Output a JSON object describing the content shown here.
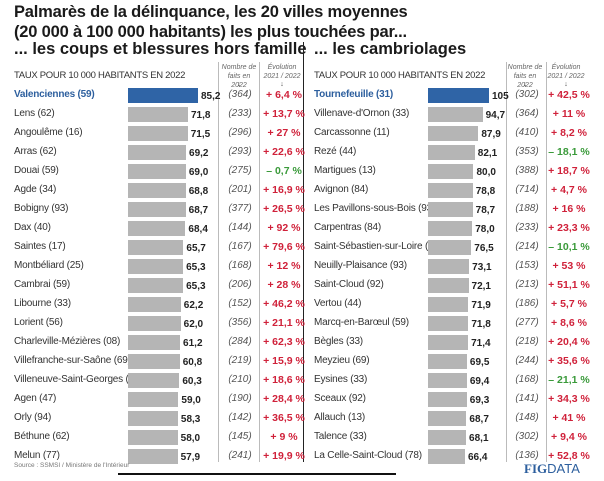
{
  "title_lines": [
    "Palmarès de la délinquance, les 20 villes moyennes",
    "(20 000 à 100 000 habitants) les plus touchées par..."
  ],
  "source": "Source : SSMSI / Ministère de l'Intérieur",
  "logo": {
    "bold": "FIG",
    "light": "DATA"
  },
  "colors": {
    "highlight": "#2f64a6",
    "bar": "#b5b5b5",
    "increase": "#d0213a",
    "decrease": "#3a9a3a"
  },
  "chart_data": [
    {
      "type": "bar",
      "title": "... les coups et blessures hors famille",
      "unit_label": "TAUX POUR 10 000 HABITANTS EN 2022",
      "count_header": "Nombre de faits en 2022",
      "evolution_header": "Évolution 2021 / 2022",
      "categories": [
        "Valenciennes (59)",
        "Lens (62)",
        "Angoulême (16)",
        "Arras (62)",
        "Douai (59)",
        "Agde (34)",
        "Bobigny (93)",
        "Dax (40)",
        "Saintes (17)",
        "Montbéliard (25)",
        "Cambrai (59)",
        "Libourne (33)",
        "Lorient (56)",
        "Charleville-Mézières (08)",
        "Villefranche-sur-Saône (69)",
        "Villeneuve-Saint-Georges (94)",
        "Agen (47)",
        "Orly (94)",
        "Béthune (62)",
        "Melun (77)"
      ],
      "values": [
        85.2,
        71.8,
        71.5,
        69.2,
        69.0,
        68.8,
        68.7,
        68.4,
        65.7,
        65.3,
        65.3,
        62.2,
        62.0,
        61.2,
        60.8,
        60.3,
        59.0,
        58.3,
        58.0,
        57.9
      ],
      "value_labels": [
        "85,2",
        "71,8",
        "71,5",
        "69,2",
        "69,0",
        "68,8",
        "68,7",
        "68,4",
        "65,7",
        "65,3",
        "65,3",
        "62,2",
        "62,0",
        "61,2",
        "60,8",
        "60,3",
        "59,0",
        "58,3",
        "58,0",
        "57,9"
      ],
      "counts": [
        "(364)",
        "(233)",
        "(296)",
        "(293)",
        "(275)",
        "(201)",
        "(377)",
        "(144)",
        "(167)",
        "(168)",
        "(206)",
        "(152)",
        "(356)",
        "(284)",
        "(219)",
        "(210)",
        "(190)",
        "(142)",
        "(145)",
        "(241)"
      ],
      "evolution": [
        "+ 6,4 %",
        "+ 13,7 %",
        "+ 27 %",
        "+ 22,6 %",
        "– 0,7 %",
        "+ 16,9 %",
        "+ 26,5 %",
        "+ 92 %",
        "+ 79,6 %",
        "+ 12 %",
        "+ 28 %",
        "+ 46,2 %",
        "+ 21,1 %",
        "+ 62,3 %",
        "+ 15,9 %",
        "+ 18,6 %",
        "+ 28,4 %",
        "+ 36,5 %",
        "+ 9 %",
        "+ 19,9 %"
      ]
    },
    {
      "type": "bar",
      "title": "... les cambriolages",
      "unit_label": "TAUX POUR 10 000 HABITANTS EN 2022",
      "count_header": "Nombre de faits en 2022",
      "evolution_header": "Évolution 2021 / 2022",
      "categories": [
        "Tournefeuille (31)",
        "Villenave-d'Ornon (33)",
        "Carcassonne (11)",
        "Rezé (44)",
        "Martigues (13)",
        "Avignon (84)",
        "Les Pavillons-sous-Bois (93)",
        "Carpentras (84)",
        "Saint-Sébastien-sur-Loire (44)",
        "Neuilly-Plaisance (93)",
        "Saint-Cloud (92)",
        "Vertou (44)",
        "Marcq-en-Barœul (59)",
        "Bègles (33)",
        "Meyzieu (69)",
        "Eysines (33)",
        "Sceaux (92)",
        "Allauch (13)",
        "Talence (33)",
        "La Celle-Saint-Cloud (78)"
      ],
      "values": [
        105,
        94.7,
        87.9,
        82.1,
        80.0,
        78.8,
        78.7,
        78.0,
        76.5,
        73.1,
        72.1,
        71.9,
        71.8,
        71.4,
        69.5,
        69.4,
        69.3,
        68.7,
        68.1,
        66.4
      ],
      "value_labels": [
        "105",
        "94,7",
        "87,9",
        "82,1",
        "80,0",
        "78,8",
        "78,7",
        "78,0",
        "76,5",
        "73,1",
        "72,1",
        "71,9",
        "71,8",
        "71,4",
        "69,5",
        "69,4",
        "69,3",
        "68,7",
        "68,1",
        "66,4"
      ],
      "counts": [
        "(302)",
        "(364)",
        "(410)",
        "(353)",
        "(388)",
        "(714)",
        "(188)",
        "(233)",
        "(214)",
        "(153)",
        "(213)",
        "(186)",
        "(277)",
        "(218)",
        "(244)",
        "(168)",
        "(141)",
        "(148)",
        "(302)",
        "(136)"
      ],
      "evolution": [
        "+ 42,5 %",
        "+ 11 %",
        "+ 8,2 %",
        "– 18,1 %",
        "+ 18,7 %",
        "+ 4,7 %",
        "+ 16 %",
        "+ 23,3 %",
        "– 10,1 %",
        "+ 53 %",
        "+ 51,1 %",
        "+ 5,7 %",
        "+ 8,6 %",
        "+ 20,4 %",
        "+ 35,6 %",
        "– 21,1 %",
        "+ 34,3 %",
        "+ 41 %",
        "+ 9,4 %",
        "+ 52,8 %"
      ]
    }
  ]
}
